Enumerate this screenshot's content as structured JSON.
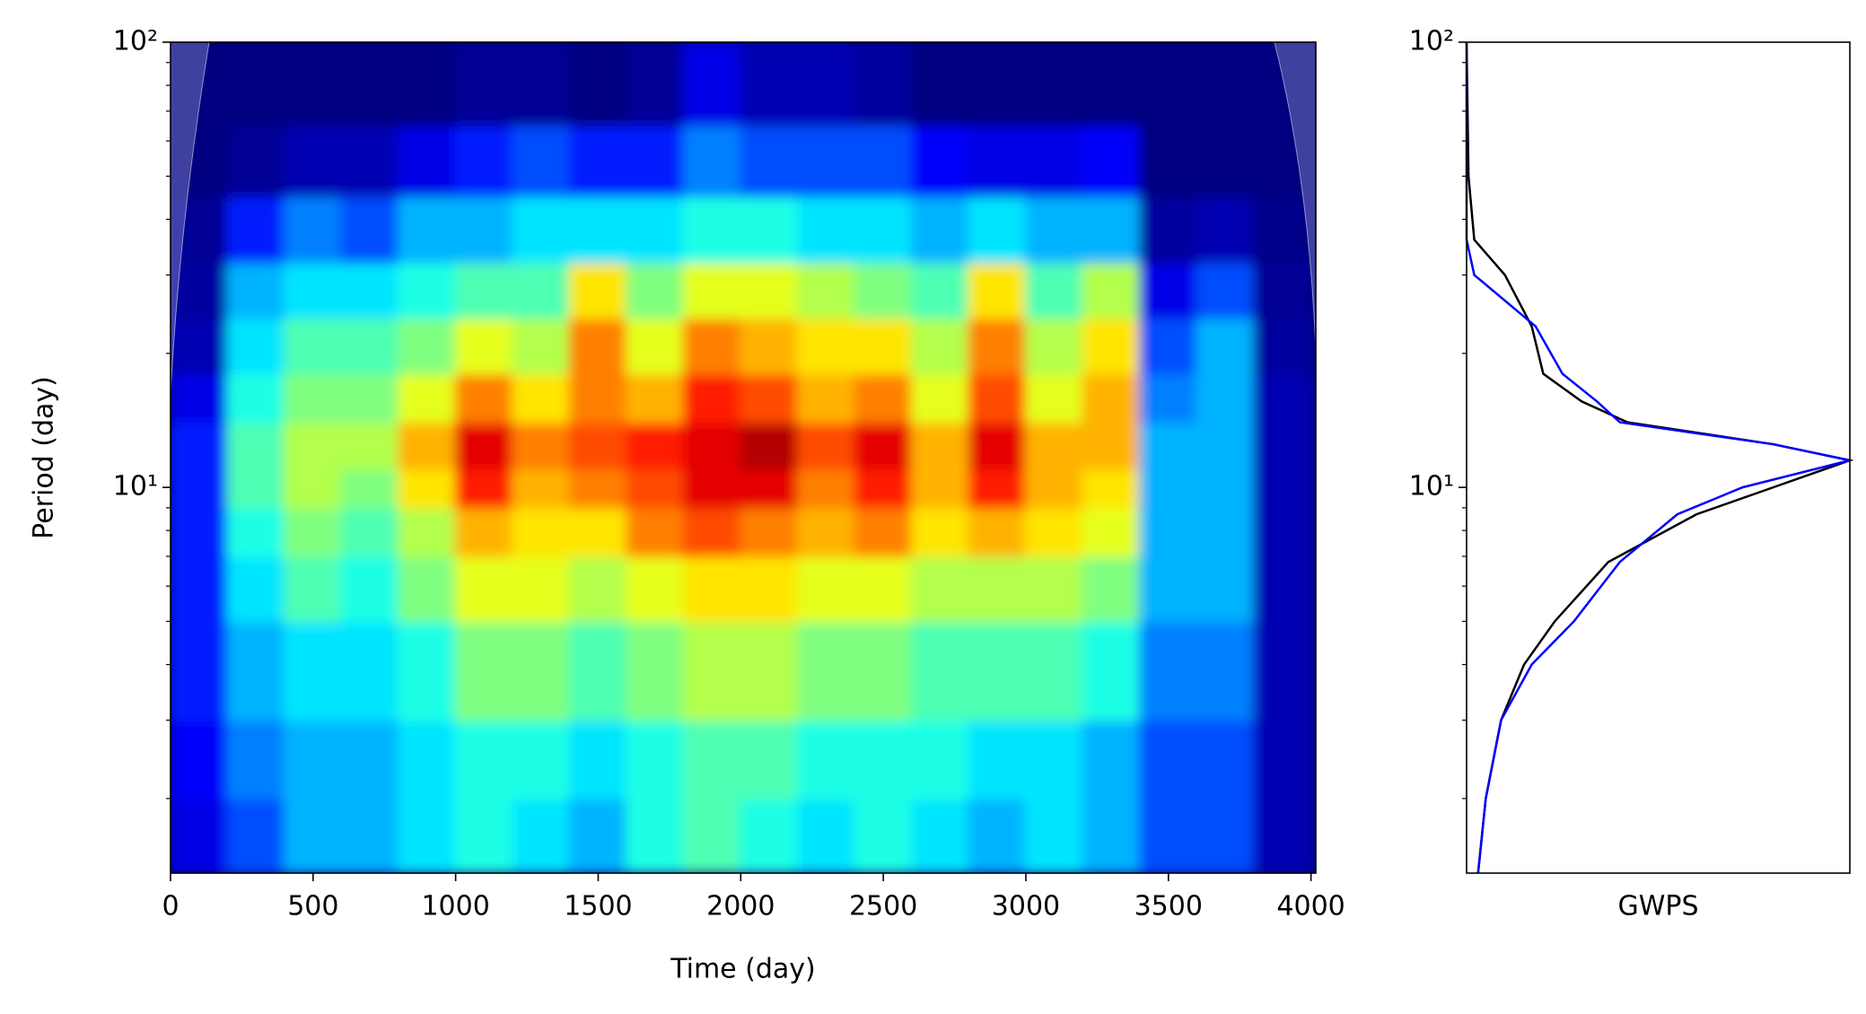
{
  "chart_data": [
    {
      "type": "heatmap",
      "xlabel": "Time (day)",
      "ylabel": "Period (day)",
      "colormap": "jet",
      "zlim": [
        0,
        1
      ],
      "ylog": true,
      "xlim": [
        0,
        4017
      ],
      "xticks": [
        0,
        500,
        1000,
        1500,
        2000,
        2500,
        3000,
        3500,
        4000
      ],
      "ylim": [
        1.36,
        100
      ],
      "yticks": [
        {
          "value": 10,
          "label": "10¹"
        },
        {
          "value": 100,
          "label": "10²"
        }
      ],
      "yminorticks": [
        2,
        3,
        4,
        5,
        6,
        7,
        8,
        9,
        20,
        30,
        40,
        50,
        60,
        70,
        80,
        90
      ],
      "xbins": [
        0,
        200,
        400,
        600,
        800,
        1000,
        1200,
        1400,
        1600,
        1800,
        2000,
        2200,
        2400,
        2600,
        2800,
        3000,
        3200,
        3400,
        3600,
        3800,
        4000
      ],
      "ybins": [
        1.36,
        2,
        3,
        5,
        7,
        9,
        11,
        14,
        18,
        24,
        32,
        45,
        65,
        100
      ],
      "z": [
        [
          0.1,
          0.2,
          0.3,
          0.3,
          0.35,
          0.4,
          0.35,
          0.3,
          0.4,
          0.45,
          0.4,
          0.35,
          0.4,
          0.35,
          0.3,
          0.35,
          0.3,
          0.2,
          0.2,
          0.05
        ],
        [
          0.12,
          0.25,
          0.3,
          0.3,
          0.35,
          0.4,
          0.4,
          0.35,
          0.4,
          0.45,
          0.45,
          0.4,
          0.4,
          0.4,
          0.35,
          0.35,
          0.3,
          0.2,
          0.2,
          0.05
        ],
        [
          0.15,
          0.3,
          0.35,
          0.35,
          0.4,
          0.5,
          0.5,
          0.45,
          0.5,
          0.55,
          0.55,
          0.5,
          0.5,
          0.45,
          0.45,
          0.45,
          0.4,
          0.25,
          0.25,
          0.05
        ],
        [
          0.15,
          0.35,
          0.45,
          0.4,
          0.5,
          0.6,
          0.6,
          0.55,
          0.6,
          0.65,
          0.65,
          0.6,
          0.6,
          0.55,
          0.55,
          0.55,
          0.5,
          0.3,
          0.3,
          0.05
        ],
        [
          0.15,
          0.4,
          0.5,
          0.45,
          0.55,
          0.7,
          0.65,
          0.65,
          0.75,
          0.8,
          0.75,
          0.7,
          0.75,
          0.65,
          0.7,
          0.65,
          0.6,
          0.3,
          0.3,
          0.05
        ],
        [
          0.15,
          0.45,
          0.55,
          0.5,
          0.65,
          0.85,
          0.7,
          0.75,
          0.8,
          0.9,
          0.9,
          0.75,
          0.85,
          0.7,
          0.85,
          0.7,
          0.65,
          0.3,
          0.3,
          0.05
        ],
        [
          0.15,
          0.45,
          0.55,
          0.55,
          0.7,
          0.9,
          0.75,
          0.8,
          0.85,
          0.9,
          0.95,
          0.8,
          0.9,
          0.7,
          0.9,
          0.7,
          0.7,
          0.3,
          0.3,
          0.05
        ],
        [
          0.1,
          0.4,
          0.5,
          0.5,
          0.6,
          0.75,
          0.65,
          0.75,
          0.7,
          0.85,
          0.8,
          0.7,
          0.75,
          0.6,
          0.8,
          0.6,
          0.7,
          0.25,
          0.3,
          0.05
        ],
        [
          0.05,
          0.35,
          0.45,
          0.45,
          0.5,
          0.6,
          0.55,
          0.75,
          0.6,
          0.75,
          0.7,
          0.65,
          0.65,
          0.55,
          0.75,
          0.55,
          0.65,
          0.2,
          0.3,
          0.03
        ],
        [
          0.03,
          0.3,
          0.35,
          0.35,
          0.4,
          0.45,
          0.45,
          0.65,
          0.5,
          0.6,
          0.6,
          0.55,
          0.5,
          0.45,
          0.65,
          0.45,
          0.55,
          0.1,
          0.2,
          0.02
        ],
        [
          0.02,
          0.15,
          0.25,
          0.2,
          0.3,
          0.3,
          0.35,
          0.35,
          0.35,
          0.4,
          0.4,
          0.35,
          0.35,
          0.3,
          0.35,
          0.3,
          0.3,
          0.03,
          0.05,
          0.01
        ],
        [
          0,
          0.02,
          0.05,
          0.05,
          0.1,
          0.15,
          0.2,
          0.15,
          0.15,
          0.25,
          0.2,
          0.2,
          0.2,
          0.12,
          0.1,
          0.1,
          0.12,
          0,
          0,
          0
        ],
        [
          0,
          0,
          0,
          0,
          0,
          0.02,
          0.02,
          0,
          0.02,
          0.1,
          0.05,
          0.05,
          0.03,
          0,
          0,
          0,
          0,
          0,
          0,
          0
        ]
      ]
    },
    {
      "type": "line",
      "xlabel": "GWPS",
      "ylog": true,
      "xlim": [
        0,
        1
      ],
      "ylim": [
        1.36,
        100
      ],
      "yticks": [
        {
          "value": 10,
          "label": "10¹"
        },
        {
          "value": 100,
          "label": "10²"
        }
      ],
      "yminorticks": [
        2,
        3,
        4,
        5,
        6,
        7,
        8,
        9,
        20,
        30,
        40,
        50,
        60,
        70,
        80,
        90
      ],
      "y": [
        1.36,
        2,
        3,
        4,
        5,
        6.8,
        8.7,
        10,
        11.5,
        12.5,
        14,
        15.6,
        18,
        23,
        30,
        36,
        50,
        100
      ],
      "series": [
        {
          "color": "#000000",
          "values": [
            0.03,
            0.05,
            0.09,
            0.15,
            0.23,
            0.37,
            0.6,
            0.8,
            1.0,
            0.8,
            0.42,
            0.3,
            0.2,
            0.17,
            0.1,
            0.02,
            0.005,
            0
          ]
        },
        {
          "color": "#0000ff",
          "values": [
            0.03,
            0.05,
            0.09,
            0.17,
            0.28,
            0.4,
            0.55,
            0.72,
            1.0,
            0.8,
            0.4,
            0.34,
            0.25,
            0.18,
            0.02,
            0,
            0,
            0
          ]
        }
      ]
    }
  ]
}
